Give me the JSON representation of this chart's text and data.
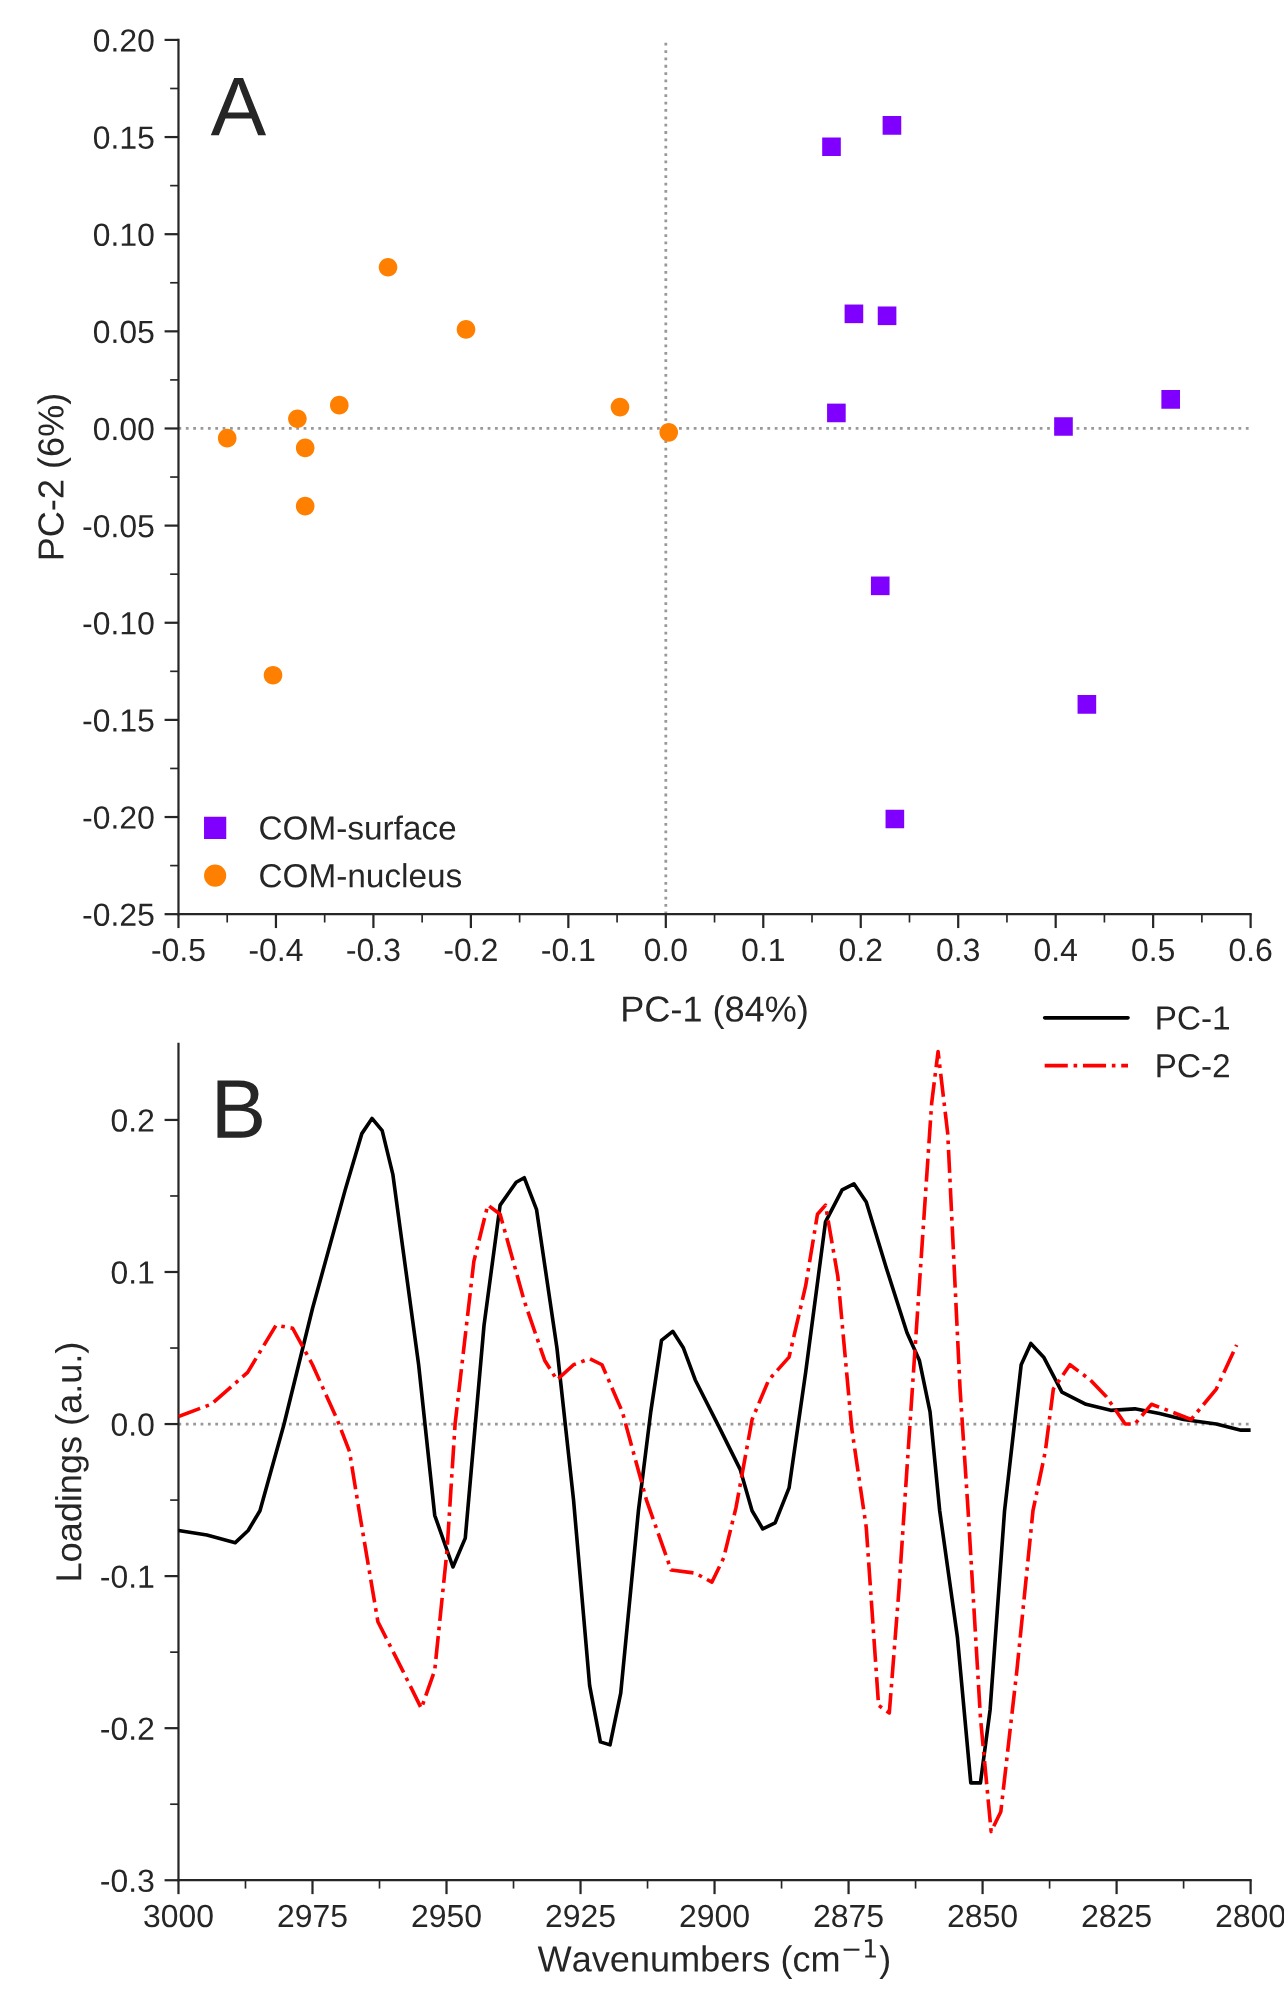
{
  "chart_data": [
    {
      "type": "scatter",
      "xlabel": "PC-1 (84%)",
      "ylabel": "PC-2 (6%)",
      "annotations": [
        "A"
      ],
      "xlim": [
        -0.5,
        0.6
      ],
      "ylim": [
        -0.25,
        0.2
      ],
      "xticks": [
        {
          "value": -0.5,
          "label": "-0.5"
        },
        {
          "value": -0.4,
          "label": "-0.4"
        },
        {
          "value": -0.3,
          "label": "-0.3"
        },
        {
          "value": -0.2,
          "label": "-0.2"
        },
        {
          "value": -0.1,
          "label": "-0.1"
        },
        {
          "value": 0,
          "label": "0.0"
        },
        {
          "value": 0.1,
          "label": "0.1"
        },
        {
          "value": 0.2,
          "label": "0.2"
        },
        {
          "value": 0.3,
          "label": "0.3"
        },
        {
          "value": 0.4,
          "label": "0.4"
        },
        {
          "value": 0.5,
          "label": "0.5"
        },
        {
          "value": 0.6,
          "label": "0.6"
        }
      ],
      "yticks": [
        {
          "value": -0.25,
          "label": "-0.25"
        },
        {
          "value": -0.2,
          "label": "-0.20"
        },
        {
          "value": -0.15,
          "label": "-0.15"
        },
        {
          "value": -0.1,
          "label": "-0.10"
        },
        {
          "value": -0.05,
          "label": "-0.05"
        },
        {
          "value": 0,
          "label": "0.00"
        },
        {
          "value": 0.05,
          "label": "0.05"
        },
        {
          "value": 0.1,
          "label": "0.10"
        },
        {
          "value": 0.15,
          "label": "0.15"
        },
        {
          "value": 0.2,
          "label": "0.20"
        }
      ],
      "ref_lines": [
        {
          "axis": "x",
          "value": 0,
          "color": "#999999",
          "line_style": "dotted"
        },
        {
          "axis": "y",
          "value": 0,
          "color": "#999999",
          "line_style": "dotted"
        }
      ],
      "grid": false,
      "legend": "bottom left",
      "series": [
        {
          "name": "COM-surface",
          "color": "#8000ff",
          "marker": "square",
          "x": [
            0.17,
            0.232,
            0.193,
            0.227,
            0.175,
            0.408,
            0.518,
            0.22,
            0.432,
            0.235
          ],
          "values": [
            0.145,
            0.156,
            0.059,
            0.058,
            0.008,
            0.001,
            0.015,
            -0.081,
            -0.142,
            -0.201
          ]
        },
        {
          "name": "COM-nucleus",
          "color": "#ff8000",
          "marker": "circle",
          "x": [
            -0.45,
            -0.378,
            -0.37,
            -0.37,
            -0.335,
            -0.285,
            -0.205,
            -0.047,
            0.003,
            -0.403
          ],
          "values": [
            -0.005,
            0.005,
            -0.01,
            -0.04,
            0.012,
            0.083,
            0.051,
            0.011,
            -0.002,
            -0.127
          ]
        }
      ]
    },
    {
      "type": "line",
      "xlabel": "Wavenumbers (cm$^{−1}$)",
      "ylabel": "Loadings (a.u.)",
      "annotations": [
        "B"
      ],
      "xlim": [
        3000,
        2800
      ],
      "ylim": [
        -0.3,
        0.25
      ],
      "xticks": [
        3000,
        2975,
        2950,
        2925,
        2900,
        2875,
        2850,
        2825,
        2800
      ],
      "yticks": [
        {
          "value": -0.3,
          "label": "-0.3"
        },
        {
          "value": -0.2,
          "label": "-0.2"
        },
        {
          "value": -0.1,
          "label": "-0.1"
        },
        {
          "value": 0,
          "label": "0.0"
        },
        {
          "value": 0.1,
          "label": "0.1"
        },
        {
          "value": 0.2,
          "label": "0.2"
        }
      ],
      "ref_lines": [
        {
          "axis": "y",
          "value": 0,
          "color": "#999999",
          "line_style": "dotted"
        }
      ],
      "grid": false,
      "legend": "top right",
      "series": [
        {
          "name": "PC-1",
          "color": "#000000",
          "line_style": "solid",
          "x": [
            3000,
            2994.7,
            2989.4,
            2987,
            2984.8,
            2980.3,
            2975,
            2968.9,
            2965.8,
            2963.9,
            2962,
            2960,
            2958.2,
            2955.2,
            2952.2,
            2948.8,
            2946.5,
            2943,
            2940,
            2937,
            2935.5,
            2933.2,
            2929.4,
            2926.3,
            2923.3,
            2921.3,
            2919.5,
            2917.5,
            2914.2,
            2911.9,
            2909.9,
            2907.8,
            2905.8,
            2903.6,
            2899,
            2895.2,
            2893,
            2891,
            2888.7,
            2886.1,
            2883,
            2879.3,
            2876.2,
            2874,
            2871.7,
            2867.9,
            2864.1,
            2861.8,
            2859.8,
            2858,
            2854.7,
            2852.2,
            2850.4,
            2848.6,
            2845.9,
            2842.8,
            2841,
            2838.6,
            2835.2,
            2830.7,
            2826.1,
            2821.6,
            2817,
            2812.5,
            2806.4,
            2801.8,
            2800
          ],
          "values": [
            -0.07,
            -0.073,
            -0.078,
            -0.07,
            -0.057,
            0.0,
            0.076,
            0.154,
            0.191,
            0.201,
            0.193,
            0.164,
            0.117,
            0.039,
            -0.06,
            -0.094,
            -0.075,
            0.065,
            0.144,
            0.159,
            0.162,
            0.141,
            0.05,
            -0.05,
            -0.172,
            -0.209,
            -0.211,
            -0.177,
            -0.057,
            0.008,
            0.055,
            0.061,
            0.05,
            0.029,
            -0.003,
            -0.03,
            -0.057,
            -0.069,
            -0.065,
            -0.042,
            0.034,
            0.133,
            0.154,
            0.158,
            0.146,
            0.102,
            0.06,
            0.042,
            0.008,
            -0.057,
            -0.14,
            -0.236,
            -0.236,
            -0.188,
            -0.057,
            0.039,
            0.053,
            0.044,
            0.021,
            0.013,
            0.009,
            0.01,
            0.007,
            0.003,
            0.0,
            -0.004,
            -0.004
          ]
        },
        {
          "name": "PC-2",
          "color": "#ff0000",
          "line_style": "dashdot",
          "x": [
            3000,
            2993.9,
            2987.1,
            2981.8,
            2978.7,
            2975,
            2970.4,
            2968.1,
            2966.3,
            2962.8,
            2958.2,
            2954.7,
            2952.2,
            2949.9,
            2948.4,
            2944.9,
            2942.3,
            2940,
            2935.5,
            2931.7,
            2929.4,
            2926.3,
            2923.3,
            2921,
            2917.2,
            2912.7,
            2908.1,
            2903.6,
            2900.5,
            2898.3,
            2896,
            2893,
            2889.9,
            2886.1,
            2883,
            2880.8,
            2879.3,
            2877,
            2874.4,
            2871.7,
            2869.4,
            2867.4,
            2865.6,
            2864.1,
            2861.8,
            2859.5,
            2858.3,
            2856.5,
            2854.2,
            2852.7,
            2850.4,
            2848.4,
            2846.6,
            2843.6,
            2840.6,
            2838.3,
            2836.8,
            2833.7,
            2829.9,
            2826.9,
            2823.4,
            2821.6,
            2818.5,
            2814.7,
            2811.1,
            2806.4,
            2802.6
          ],
          "values": [
            0.005,
            0.013,
            0.034,
            0.065,
            0.063,
            0.039,
            0.003,
            -0.018,
            -0.057,
            -0.13,
            -0.162,
            -0.187,
            -0.162,
            -0.083,
            0.0,
            0.107,
            0.144,
            0.138,
            0.081,
            0.042,
            0.029,
            0.039,
            0.043,
            0.039,
            0.008,
            -0.05,
            -0.096,
            -0.098,
            -0.104,
            -0.088,
            -0.055,
            0.003,
            0.029,
            0.044,
            0.091,
            0.138,
            0.144,
            0.097,
            -0.003,
            -0.068,
            -0.185,
            -0.19,
            -0.109,
            -0.029,
            0.091,
            0.211,
            0.245,
            0.191,
            0.023,
            -0.057,
            -0.193,
            -0.268,
            -0.255,
            -0.162,
            -0.057,
            -0.018,
            0.023,
            0.039,
            0.029,
            0.018,
            0.0,
            0.0,
            0.013,
            0.008,
            0.003,
            0.023,
            0.052
          ]
        }
      ]
    }
  ]
}
